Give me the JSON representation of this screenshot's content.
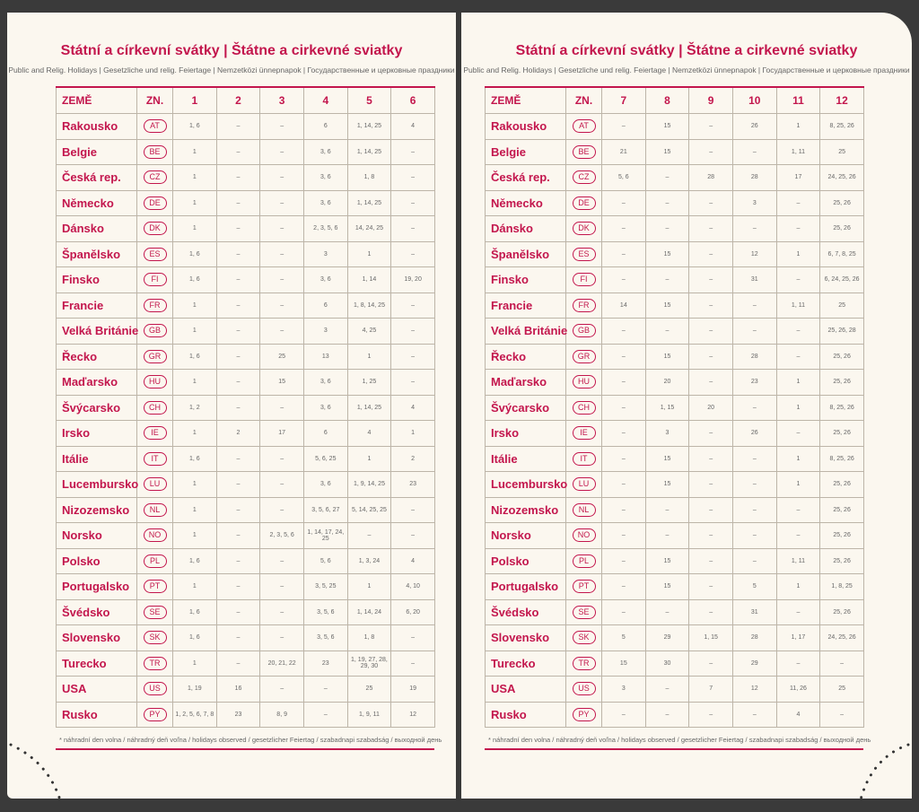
{
  "pages": [
    {
      "title": "Státní a církevní svátky | Štátne a cirkevné sviatky",
      "subtitle": "Public and Relig. Holidays | Gesetzliche und relig. Feiertage | Nemzetközi ünnepnapok | Государственные и церковные праздники",
      "header": [
        "ZEMĚ",
        "ZN.",
        "1",
        "2",
        "3",
        "4",
        "5",
        "6"
      ],
      "rows": [
        [
          "Rakousko",
          "AT",
          "1, 6",
          "–",
          "–",
          "6",
          "1, 14, 25",
          "4"
        ],
        [
          "Belgie",
          "BE",
          "1",
          "–",
          "–",
          "3, 6",
          "1, 14, 25",
          "–"
        ],
        [
          "Česká rep.",
          "CZ",
          "1",
          "–",
          "–",
          "3, 6",
          "1, 8",
          "–"
        ],
        [
          "Německo",
          "DE",
          "1",
          "–",
          "–",
          "3, 6",
          "1, 14, 25",
          "–"
        ],
        [
          "Dánsko",
          "DK",
          "1",
          "–",
          "–",
          "2, 3, 5, 6",
          "14, 24, 25",
          "–"
        ],
        [
          "Španělsko",
          "ES",
          "1, 6",
          "–",
          "–",
          "3",
          "1",
          "–"
        ],
        [
          "Finsko",
          "FI",
          "1, 6",
          "–",
          "–",
          "3, 6",
          "1, 14",
          "19, 20"
        ],
        [
          "Francie",
          "FR",
          "1",
          "–",
          "–",
          "6",
          "1, 8, 14, 25",
          "–"
        ],
        [
          "Velká Británie",
          "GB",
          "1",
          "–",
          "–",
          "3",
          "4, 25",
          "–"
        ],
        [
          "Řecko",
          "GR",
          "1, 6",
          "–",
          "25",
          "13",
          "1",
          "–"
        ],
        [
          "Maďarsko",
          "HU",
          "1",
          "–",
          "15",
          "3, 6",
          "1, 25",
          "–"
        ],
        [
          "Švýcarsko",
          "CH",
          "1, 2",
          "–",
          "–",
          "3, 6",
          "1, 14, 25",
          "4"
        ],
        [
          "Irsko",
          "IE",
          "1",
          "2",
          "17",
          "6",
          "4",
          "1"
        ],
        [
          "Itálie",
          "IT",
          "1, 6",
          "–",
          "–",
          "5, 6, 25",
          "1",
          "2"
        ],
        [
          "Lucembursko",
          "LU",
          "1",
          "–",
          "–",
          "3, 6",
          "1, 9, 14, 25",
          "23"
        ],
        [
          "Nizozemsko",
          "NL",
          "1",
          "–",
          "–",
          "3, 5, 6, 27",
          "5, 14, 25, 25",
          "–"
        ],
        [
          "Norsko",
          "NO",
          "1",
          "–",
          "2, 3, 5, 6",
          "1, 14, 17, 24, 25",
          "–",
          "–"
        ],
        [
          "Polsko",
          "PL",
          "1, 6",
          "–",
          "–",
          "5, 6",
          "1, 3, 24",
          "4"
        ],
        [
          "Portugalsko",
          "PT",
          "1",
          "–",
          "–",
          "3, 5, 25",
          "1",
          "4, 10"
        ],
        [
          "Švédsko",
          "SE",
          "1, 6",
          "–",
          "–",
          "3, 5, 6",
          "1, 14, 24",
          "6, 20"
        ],
        [
          "Slovensko",
          "SK",
          "1, 6",
          "–",
          "–",
          "3, 5, 6",
          "1, 8",
          "–"
        ],
        [
          "Turecko",
          "TR",
          "1",
          "–",
          "20, 21, 22",
          "23",
          "1, 19, 27, 28, 29, 30",
          "–"
        ],
        [
          "USA",
          "US",
          "1, 19",
          "16",
          "–",
          "–",
          "25",
          "19"
        ],
        [
          "Rusko",
          "PY",
          "1, 2, 5, 6, 7, 8",
          "23",
          "8, 9",
          "–",
          "1, 9, 11",
          "12"
        ]
      ],
      "footnote": "* náhradní den volna / náhradný deň voľna / holidays observed / gesetzlicher Feiertag / szabadnapi szabadság / выходной день"
    },
    {
      "title": "Státní a církevní svátky | Štátne a cirkevné sviatky",
      "subtitle": "Public and Relig. Holidays | Gesetzliche und relig. Feiertage | Nemzetközi ünnepnapok | Государственные и церковные праздники",
      "header": [
        "ZEMĚ",
        "ZN.",
        "7",
        "8",
        "9",
        "10",
        "11",
        "12"
      ],
      "rows": [
        [
          "Rakousko",
          "AT",
          "–",
          "15",
          "–",
          "26",
          "1",
          "8, 25, 26"
        ],
        [
          "Belgie",
          "BE",
          "21",
          "15",
          "–",
          "–",
          "1, 11",
          "25"
        ],
        [
          "Česká rep.",
          "CZ",
          "5, 6",
          "–",
          "28",
          "28",
          "17",
          "24, 25, 26"
        ],
        [
          "Německo",
          "DE",
          "–",
          "–",
          "–",
          "3",
          "–",
          "25, 26"
        ],
        [
          "Dánsko",
          "DK",
          "–",
          "–",
          "–",
          "–",
          "–",
          "25, 26"
        ],
        [
          "Španělsko",
          "ES",
          "–",
          "15",
          "–",
          "12",
          "1",
          "6, 7, 8, 25"
        ],
        [
          "Finsko",
          "FI",
          "–",
          "–",
          "–",
          "31",
          "–",
          "6, 24, 25, 26"
        ],
        [
          "Francie",
          "FR",
          "14",
          "15",
          "–",
          "–",
          "1, 11",
          "25"
        ],
        [
          "Velká Británie",
          "GB",
          "–",
          "–",
          "–",
          "–",
          "–",
          "25, 26, 28"
        ],
        [
          "Řecko",
          "GR",
          "–",
          "15",
          "–",
          "28",
          "–",
          "25, 26"
        ],
        [
          "Maďarsko",
          "HU",
          "–",
          "20",
          "–",
          "23",
          "1",
          "25, 26"
        ],
        [
          "Švýcarsko",
          "CH",
          "–",
          "1, 15",
          "20",
          "–",
          "1",
          "8, 25, 26"
        ],
        [
          "Irsko",
          "IE",
          "–",
          "3",
          "–",
          "26",
          "–",
          "25, 26"
        ],
        [
          "Itálie",
          "IT",
          "–",
          "15",
          "–",
          "–",
          "1",
          "8, 25, 26"
        ],
        [
          "Lucembursko",
          "LU",
          "–",
          "15",
          "–",
          "–",
          "1",
          "25, 26"
        ],
        [
          "Nizozemsko",
          "NL",
          "–",
          "–",
          "–",
          "–",
          "–",
          "25, 26"
        ],
        [
          "Norsko",
          "NO",
          "–",
          "–",
          "–",
          "–",
          "–",
          "25, 26"
        ],
        [
          "Polsko",
          "PL",
          "–",
          "15",
          "–",
          "–",
          "1, 11",
          "25, 26"
        ],
        [
          "Portugalsko",
          "PT",
          "–",
          "15",
          "–",
          "5",
          "1",
          "1, 8, 25"
        ],
        [
          "Švédsko",
          "SE",
          "–",
          "–",
          "–",
          "31",
          "–",
          "25, 26"
        ],
        [
          "Slovensko",
          "SK",
          "5",
          "29",
          "1, 15",
          "28",
          "1, 17",
          "24, 25, 26"
        ],
        [
          "Turecko",
          "TR",
          "15",
          "30",
          "–",
          "29",
          "–",
          "–"
        ],
        [
          "USA",
          "US",
          "3",
          "–",
          "7",
          "12",
          "11, 26",
          "25"
        ],
        [
          "Rusko",
          "PY",
          "–",
          "–",
          "–",
          "–",
          "4",
          "–"
        ]
      ],
      "footnote": "* náhradní den volna / náhradný deň voľna / holidays observed / gesetzlicher Feiertag / szabadnapi szabadság / выходной день"
    }
  ]
}
